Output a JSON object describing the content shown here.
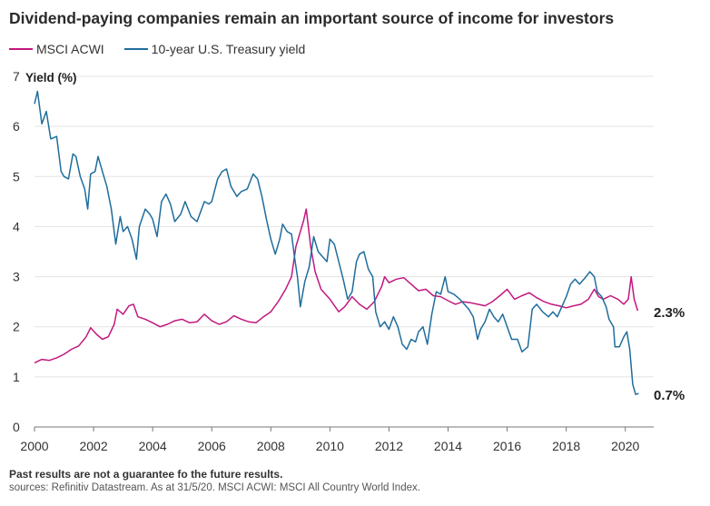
{
  "title": "Dividend-paying companies remain an important source of income for investors",
  "legend": [
    {
      "label": "MSCI ACWI",
      "color": "#c2187f"
    },
    {
      "label": "10-year U.S. Treasury yield",
      "color": "#1f6d9c"
    }
  ],
  "footnote": "Past results are not a guarantee fo the future results.",
  "source": "sources: Refinitiv Datastream. As at 31/5/20. MSCI ACWI: MSCI All Country World Index.",
  "chart_data": {
    "type": "line",
    "ylabel": "Yield (%)",
    "xlabel": "",
    "xlim": [
      2000,
      2020.5
    ],
    "ylim": [
      0,
      7
    ],
    "x_ticks": [
      "2000",
      "2002",
      "2004",
      "2006",
      "2008",
      "2010",
      "2012",
      "2014",
      "2016",
      "2018",
      "2020"
    ],
    "y_ticks": [
      "0",
      "1",
      "2",
      "3",
      "4",
      "5",
      "6",
      "7"
    ],
    "grid": true,
    "legend_position": "top-left",
    "series": [
      {
        "name": "MSCI ACWI",
        "color": "#c2187f",
        "end_label": "2.3%",
        "points": [
          [
            2000.0,
            1.28
          ],
          [
            2000.25,
            1.35
          ],
          [
            2000.5,
            1.33
          ],
          [
            2000.75,
            1.38
          ],
          [
            2001.0,
            1.45
          ],
          [
            2001.25,
            1.55
          ],
          [
            2001.5,
            1.62
          ],
          [
            2001.75,
            1.8
          ],
          [
            2001.9,
            1.98
          ],
          [
            2002.1,
            1.85
          ],
          [
            2002.3,
            1.75
          ],
          [
            2002.5,
            1.8
          ],
          [
            2002.7,
            2.05
          ],
          [
            2002.8,
            2.35
          ],
          [
            2003.0,
            2.25
          ],
          [
            2003.2,
            2.42
          ],
          [
            2003.35,
            2.45
          ],
          [
            2003.5,
            2.2
          ],
          [
            2003.75,
            2.15
          ],
          [
            2004.0,
            2.08
          ],
          [
            2004.25,
            2.0
          ],
          [
            2004.5,
            2.05
          ],
          [
            2004.75,
            2.12
          ],
          [
            2005.0,
            2.15
          ],
          [
            2005.25,
            2.08
          ],
          [
            2005.5,
            2.1
          ],
          [
            2005.75,
            2.25
          ],
          [
            2006.0,
            2.12
          ],
          [
            2006.25,
            2.05
          ],
          [
            2006.5,
            2.1
          ],
          [
            2006.75,
            2.22
          ],
          [
            2007.0,
            2.15
          ],
          [
            2007.25,
            2.1
          ],
          [
            2007.5,
            2.08
          ],
          [
            2007.75,
            2.2
          ],
          [
            2008.0,
            2.3
          ],
          [
            2008.25,
            2.5
          ],
          [
            2008.5,
            2.75
          ],
          [
            2008.7,
            3.0
          ],
          [
            2008.85,
            3.6
          ],
          [
            2009.0,
            3.9
          ],
          [
            2009.1,
            4.1
          ],
          [
            2009.2,
            4.35
          ],
          [
            2009.35,
            3.6
          ],
          [
            2009.5,
            3.1
          ],
          [
            2009.7,
            2.75
          ],
          [
            2010.0,
            2.55
          ],
          [
            2010.3,
            2.3
          ],
          [
            2010.5,
            2.4
          ],
          [
            2010.75,
            2.6
          ],
          [
            2011.0,
            2.45
          ],
          [
            2011.25,
            2.35
          ],
          [
            2011.5,
            2.5
          ],
          [
            2011.75,
            2.8
          ],
          [
            2011.85,
            3.0
          ],
          [
            2012.0,
            2.88
          ],
          [
            2012.25,
            2.95
          ],
          [
            2012.5,
            2.98
          ],
          [
            2012.75,
            2.85
          ],
          [
            2013.0,
            2.72
          ],
          [
            2013.25,
            2.75
          ],
          [
            2013.5,
            2.62
          ],
          [
            2013.75,
            2.6
          ],
          [
            2014.0,
            2.52
          ],
          [
            2014.25,
            2.45
          ],
          [
            2014.5,
            2.5
          ],
          [
            2014.75,
            2.48
          ],
          [
            2015.0,
            2.45
          ],
          [
            2015.25,
            2.42
          ],
          [
            2015.5,
            2.5
          ],
          [
            2015.75,
            2.62
          ],
          [
            2016.0,
            2.75
          ],
          [
            2016.25,
            2.55
          ],
          [
            2016.5,
            2.62
          ],
          [
            2016.75,
            2.68
          ],
          [
            2017.0,
            2.58
          ],
          [
            2017.25,
            2.5
          ],
          [
            2017.5,
            2.45
          ],
          [
            2017.75,
            2.42
          ],
          [
            2018.0,
            2.38
          ],
          [
            2018.25,
            2.42
          ],
          [
            2018.5,
            2.45
          ],
          [
            2018.75,
            2.55
          ],
          [
            2018.95,
            2.75
          ],
          [
            2019.1,
            2.6
          ],
          [
            2019.25,
            2.55
          ],
          [
            2019.5,
            2.62
          ],
          [
            2019.75,
            2.55
          ],
          [
            2019.95,
            2.45
          ],
          [
            2020.1,
            2.55
          ],
          [
            2020.2,
            3.0
          ],
          [
            2020.3,
            2.55
          ],
          [
            2020.42,
            2.32
          ]
        ]
      },
      {
        "name": "10-year U.S. Treasury yield",
        "color": "#1f6d9c",
        "end_label": "0.7%",
        "points": [
          [
            2000.0,
            6.45
          ],
          [
            2000.1,
            6.7
          ],
          [
            2000.25,
            6.05
          ],
          [
            2000.4,
            6.3
          ],
          [
            2000.55,
            5.75
          ],
          [
            2000.75,
            5.8
          ],
          [
            2000.9,
            5.1
          ],
          [
            2001.0,
            5.0
          ],
          [
            2001.15,
            4.95
          ],
          [
            2001.3,
            5.45
          ],
          [
            2001.4,
            5.4
          ],
          [
            2001.55,
            5.0
          ],
          [
            2001.7,
            4.75
          ],
          [
            2001.8,
            4.35
          ],
          [
            2001.9,
            5.05
          ],
          [
            2002.05,
            5.1
          ],
          [
            2002.15,
            5.4
          ],
          [
            2002.3,
            5.1
          ],
          [
            2002.45,
            4.8
          ],
          [
            2002.6,
            4.35
          ],
          [
            2002.75,
            3.65
          ],
          [
            2002.9,
            4.2
          ],
          [
            2003.0,
            3.9
          ],
          [
            2003.15,
            4.0
          ],
          [
            2003.3,
            3.75
          ],
          [
            2003.45,
            3.35
          ],
          [
            2003.55,
            4.0
          ],
          [
            2003.75,
            4.35
          ],
          [
            2003.9,
            4.25
          ],
          [
            2004.0,
            4.15
          ],
          [
            2004.15,
            3.8
          ],
          [
            2004.3,
            4.5
          ],
          [
            2004.45,
            4.65
          ],
          [
            2004.6,
            4.45
          ],
          [
            2004.75,
            4.1
          ],
          [
            2004.95,
            4.25
          ],
          [
            2005.1,
            4.5
          ],
          [
            2005.3,
            4.2
          ],
          [
            2005.5,
            4.1
          ],
          [
            2005.75,
            4.5
          ],
          [
            2005.9,
            4.45
          ],
          [
            2006.0,
            4.5
          ],
          [
            2006.2,
            4.95
          ],
          [
            2006.35,
            5.1
          ],
          [
            2006.5,
            5.15
          ],
          [
            2006.65,
            4.8
          ],
          [
            2006.85,
            4.6
          ],
          [
            2007.0,
            4.7
          ],
          [
            2007.2,
            4.75
          ],
          [
            2007.4,
            5.05
          ],
          [
            2007.55,
            4.95
          ],
          [
            2007.7,
            4.6
          ],
          [
            2007.85,
            4.15
          ],
          [
            2008.0,
            3.75
          ],
          [
            2008.15,
            3.45
          ],
          [
            2008.3,
            3.75
          ],
          [
            2008.4,
            4.05
          ],
          [
            2008.55,
            3.9
          ],
          [
            2008.7,
            3.85
          ],
          [
            2008.8,
            3.4
          ],
          [
            2008.9,
            3.0
          ],
          [
            2009.0,
            2.4
          ],
          [
            2009.15,
            2.9
          ],
          [
            2009.3,
            3.2
          ],
          [
            2009.45,
            3.8
          ],
          [
            2009.6,
            3.5
          ],
          [
            2009.75,
            3.4
          ],
          [
            2009.9,
            3.3
          ],
          [
            2010.0,
            3.75
          ],
          [
            2010.15,
            3.65
          ],
          [
            2010.3,
            3.3
          ],
          [
            2010.45,
            2.95
          ],
          [
            2010.6,
            2.55
          ],
          [
            2010.75,
            2.7
          ],
          [
            2010.9,
            3.3
          ],
          [
            2011.0,
            3.45
          ],
          [
            2011.15,
            3.5
          ],
          [
            2011.3,
            3.15
          ],
          [
            2011.45,
            3.0
          ],
          [
            2011.55,
            2.3
          ],
          [
            2011.7,
            2.0
          ],
          [
            2011.85,
            2.1
          ],
          [
            2012.0,
            1.95
          ],
          [
            2012.15,
            2.2
          ],
          [
            2012.3,
            2.0
          ],
          [
            2012.45,
            1.65
          ],
          [
            2012.6,
            1.55
          ],
          [
            2012.75,
            1.75
          ],
          [
            2012.9,
            1.7
          ],
          [
            2013.0,
            1.9
          ],
          [
            2013.15,
            2.0
          ],
          [
            2013.3,
            1.65
          ],
          [
            2013.45,
            2.25
          ],
          [
            2013.6,
            2.7
          ],
          [
            2013.75,
            2.65
          ],
          [
            2013.9,
            3.0
          ],
          [
            2014.0,
            2.7
          ],
          [
            2014.2,
            2.65
          ],
          [
            2014.4,
            2.55
          ],
          [
            2014.55,
            2.45
          ],
          [
            2014.7,
            2.35
          ],
          [
            2014.85,
            2.2
          ],
          [
            2015.0,
            1.75
          ],
          [
            2015.1,
            1.95
          ],
          [
            2015.25,
            2.1
          ],
          [
            2015.4,
            2.35
          ],
          [
            2015.55,
            2.2
          ],
          [
            2015.7,
            2.1
          ],
          [
            2015.85,
            2.25
          ],
          [
            2016.0,
            2.0
          ],
          [
            2016.15,
            1.75
          ],
          [
            2016.35,
            1.75
          ],
          [
            2016.5,
            1.5
          ],
          [
            2016.7,
            1.6
          ],
          [
            2016.85,
            2.35
          ],
          [
            2017.0,
            2.45
          ],
          [
            2017.2,
            2.3
          ],
          [
            2017.4,
            2.2
          ],
          [
            2017.55,
            2.3
          ],
          [
            2017.7,
            2.2
          ],
          [
            2017.85,
            2.4
          ],
          [
            2018.0,
            2.6
          ],
          [
            2018.15,
            2.85
          ],
          [
            2018.3,
            2.95
          ],
          [
            2018.45,
            2.85
          ],
          [
            2018.6,
            2.95
          ],
          [
            2018.8,
            3.1
          ],
          [
            2018.95,
            3.0
          ],
          [
            2019.05,
            2.7
          ],
          [
            2019.2,
            2.6
          ],
          [
            2019.35,
            2.4
          ],
          [
            2019.45,
            2.15
          ],
          [
            2019.6,
            2.0
          ],
          [
            2019.65,
            1.6
          ],
          [
            2019.8,
            1.6
          ],
          [
            2019.95,
            1.8
          ],
          [
            2020.05,
            1.9
          ],
          [
            2020.15,
            1.55
          ],
          [
            2020.25,
            0.85
          ],
          [
            2020.35,
            0.65
          ],
          [
            2020.45,
            0.67
          ]
        ]
      }
    ]
  }
}
